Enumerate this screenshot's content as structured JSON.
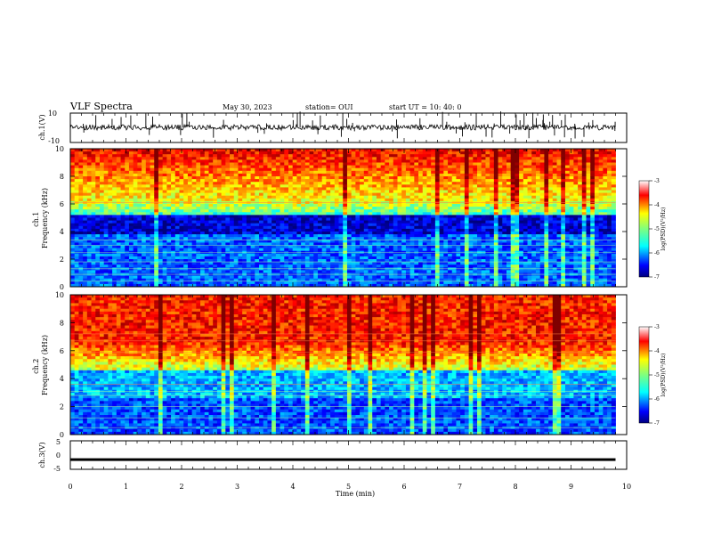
{
  "header": {
    "title": "VLF Spectra",
    "date": "May 30, 2023",
    "station": "station= OUI",
    "start": "start  UT  =   10: 40: 0"
  },
  "chart_data": [
    {
      "type": "line",
      "name": "ch1-waveform-panel",
      "ylabel": "ch.1(V)",
      "ylim": [
        -10,
        10
      ],
      "yticks": [
        "10",
        "-10"
      ],
      "xlim": [
        0,
        10
      ]
    },
    {
      "type": "heatmap",
      "name": "ch1-spectrogram",
      "ylabel": "ch.1\nFrequency (kHz)",
      "ylim": [
        0,
        10
      ],
      "yticks": [
        0,
        2,
        4,
        6,
        8,
        10
      ],
      "xlim": [
        0,
        10
      ],
      "data_end_min": 9.8,
      "colorbar": {
        "label": "log(PSD)(V²/Hz)",
        "range": [
          -7,
          -3
        ],
        "ticks": [
          "-3",
          "-4",
          "-5",
          "-6",
          "-7"
        ]
      }
    },
    {
      "type": "heatmap",
      "name": "ch2-spectrogram",
      "ylabel": "ch.2\nFrequency (kHz)",
      "ylim": [
        0,
        10
      ],
      "yticks": [
        0,
        2,
        4,
        6,
        8,
        10
      ],
      "xlim": [
        0,
        10
      ],
      "data_end_min": 9.8,
      "colorbar": {
        "label": "log(PSD)(V²/Hz)",
        "range": [
          -7,
          -3
        ],
        "ticks": [
          "-3",
          "-4",
          "-5",
          "-6",
          "-7"
        ]
      }
    },
    {
      "type": "line",
      "name": "ch3-waveform-panel",
      "ylabel": "ch.3(V)",
      "ylim": [
        -5,
        5
      ],
      "yticks": [
        "5",
        "0",
        "-5"
      ],
      "xlim": [
        0,
        10
      ],
      "approx_level": -1.6
    }
  ],
  "x_axis": {
    "label": "Time  (min)",
    "ticks": [
      "0",
      "1",
      "2",
      "3",
      "4",
      "5",
      "6",
      "7",
      "8",
      "9",
      "10"
    ]
  },
  "colors": {
    "colormap": [
      "#00007f",
      "#0000ff",
      "#007fff",
      "#00ffff",
      "#7fff7f",
      "#ffff00",
      "#ff7f00",
      "#ff0000",
      "#7f0000"
    ]
  }
}
